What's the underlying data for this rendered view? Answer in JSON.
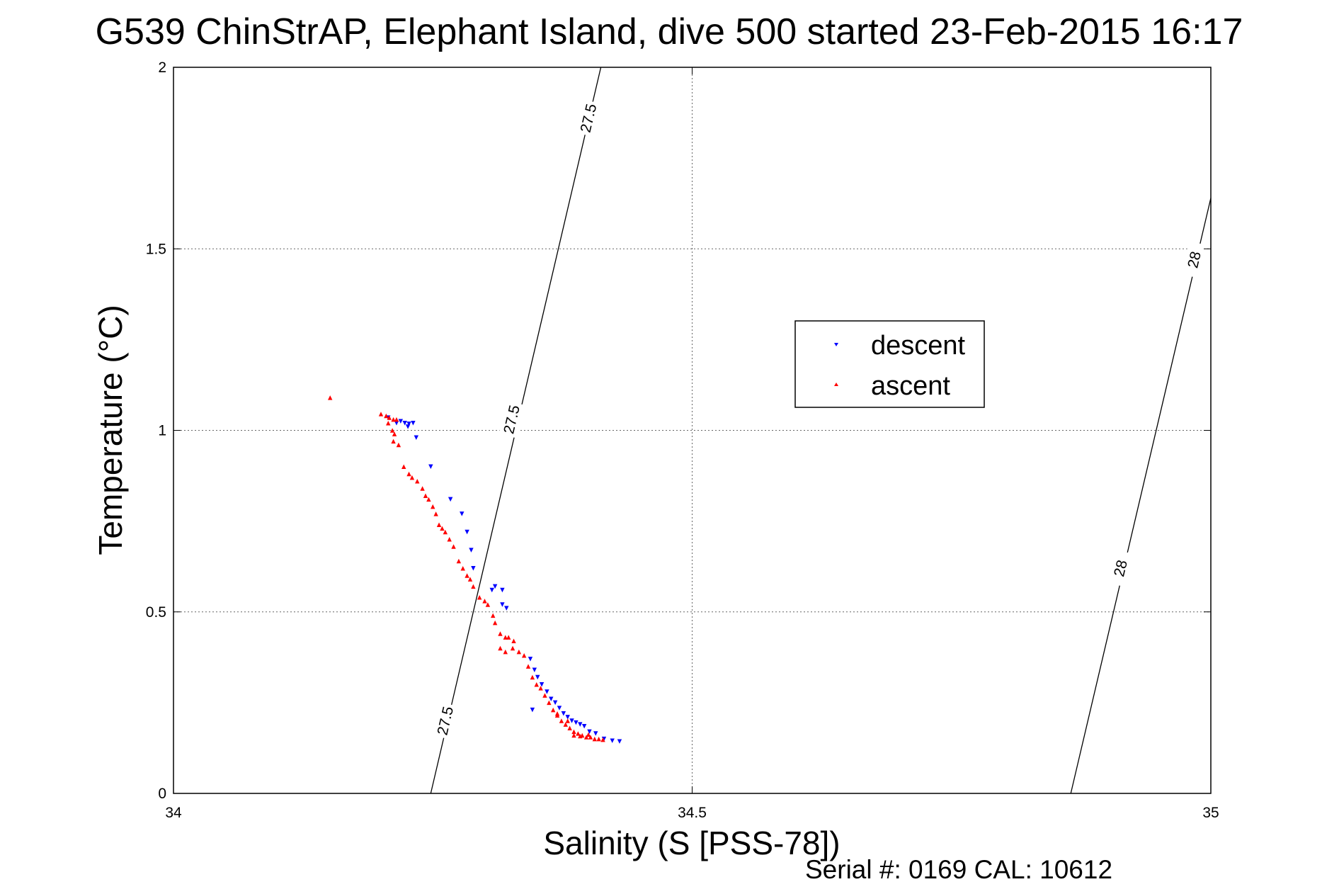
{
  "chart_data": {
    "type": "scatter",
    "title": "G539 ChinStrAP, Elephant Island, dive 500 started 23-Feb-2015 16:17",
    "xlabel": "Salinity (S [PSS-78])",
    "ylabel": "Temperature (°C)",
    "xlim": [
      34,
      35
    ],
    "ylim": [
      0,
      2
    ],
    "xticks": [
      34,
      34.5,
      35
    ],
    "xtick_labels": [
      "34",
      "34.5",
      "35"
    ],
    "yticks": [
      0,
      0.5,
      1,
      1.5,
      2
    ],
    "ytick_labels": [
      "0",
      "0.5",
      "1",
      "1.5",
      "2"
    ],
    "grid": true,
    "legend_position": "top-right of center",
    "footer": "Serial #: 0169 CAL: 10612",
    "contours": [
      {
        "value": "27.5",
        "line": [
          [
            34.248,
            0
          ],
          [
            34.412,
            2
          ]
        ],
        "label_positions": [
          [
            34.262,
            0.2
          ],
          [
            34.326,
            1.03
          ],
          [
            34.4,
            1.86
          ]
        ]
      },
      {
        "value": "28",
        "line": [
          [
            34.865,
            0
          ],
          [
            35,
            1.64
          ]
        ],
        "label_positions": [
          [
            34.913,
            0.62
          ],
          [
            34.984,
            1.47
          ]
        ]
      }
    ],
    "series": [
      {
        "name": "descent",
        "color": "#0000ff",
        "marker": "triangle-down",
        "points": [
          [
            34.207,
            1.035
          ],
          [
            34.215,
            1.02
          ],
          [
            34.219,
            1.025
          ],
          [
            34.223,
            1.02
          ],
          [
            34.227,
            1.018
          ],
          [
            34.231,
            1.02
          ],
          [
            34.226,
            1.01
          ],
          [
            34.234,
            0.98
          ],
          [
            34.248,
            0.9
          ],
          [
            34.267,
            0.81
          ],
          [
            34.278,
            0.77
          ],
          [
            34.283,
            0.72
          ],
          [
            34.287,
            0.67
          ],
          [
            34.289,
            0.62
          ],
          [
            34.31,
            0.57
          ],
          [
            34.307,
            0.56
          ],
          [
            34.317,
            0.56
          ],
          [
            34.317,
            0.52
          ],
          [
            34.321,
            0.51
          ],
          [
            34.344,
            0.37
          ],
          [
            34.348,
            0.34
          ],
          [
            34.351,
            0.32
          ],
          [
            34.355,
            0.3
          ],
          [
            34.346,
            0.23
          ],
          [
            34.36,
            0.28
          ],
          [
            34.364,
            0.26
          ],
          [
            34.368,
            0.25
          ],
          [
            34.372,
            0.235
          ],
          [
            34.376,
            0.22
          ],
          [
            34.38,
            0.21
          ],
          [
            34.384,
            0.2
          ],
          [
            34.388,
            0.195
          ],
          [
            34.392,
            0.19
          ],
          [
            34.396,
            0.185
          ],
          [
            34.401,
            0.17
          ],
          [
            34.407,
            0.165
          ],
          [
            34.415,
            0.15
          ],
          [
            34.423,
            0.145
          ],
          [
            34.43,
            0.143
          ]
        ]
      },
      {
        "name": "ascent",
        "color": "#ff0000",
        "marker": "triangle-up",
        "points": [
          [
            34.151,
            1.09
          ],
          [
            34.2,
            1.045
          ],
          [
            34.205,
            1.04
          ],
          [
            34.208,
            1.035
          ],
          [
            34.212,
            1.03
          ],
          [
            34.215,
            1.03
          ],
          [
            34.207,
            1.02
          ],
          [
            34.211,
            1.0
          ],
          [
            34.213,
            0.99
          ],
          [
            34.212,
            0.97
          ],
          [
            34.217,
            0.96
          ],
          [
            34.222,
            0.9
          ],
          [
            34.227,
            0.88
          ],
          [
            34.23,
            0.87
          ],
          [
            34.235,
            0.86
          ],
          [
            34.24,
            0.84
          ],
          [
            34.243,
            0.82
          ],
          [
            34.246,
            0.81
          ],
          [
            34.25,
            0.79
          ],
          [
            34.253,
            0.77
          ],
          [
            34.256,
            0.74
          ],
          [
            34.259,
            0.73
          ],
          [
            34.262,
            0.72
          ],
          [
            34.266,
            0.7
          ],
          [
            34.27,
            0.68
          ],
          [
            34.275,
            0.64
          ],
          [
            34.279,
            0.62
          ],
          [
            34.283,
            0.6
          ],
          [
            34.286,
            0.59
          ],
          [
            34.289,
            0.57
          ],
          [
            34.295,
            0.54
          ],
          [
            34.3,
            0.53
          ],
          [
            34.303,
            0.52
          ],
          [
            34.308,
            0.49
          ],
          [
            34.31,
            0.47
          ],
          [
            34.315,
            0.44
          ],
          [
            34.32,
            0.43
          ],
          [
            34.323,
            0.43
          ],
          [
            34.328,
            0.42
          ],
          [
            34.315,
            0.4
          ],
          [
            34.32,
            0.39
          ],
          [
            34.327,
            0.4
          ],
          [
            34.333,
            0.39
          ],
          [
            34.338,
            0.38
          ],
          [
            34.342,
            0.35
          ],
          [
            34.346,
            0.32
          ],
          [
            34.35,
            0.3
          ],
          [
            34.354,
            0.29
          ],
          [
            34.358,
            0.27
          ],
          [
            34.362,
            0.25
          ],
          [
            34.366,
            0.23
          ],
          [
            34.37,
            0.22
          ],
          [
            34.374,
            0.2
          ],
          [
            34.378,
            0.19
          ],
          [
            34.382,
            0.18
          ],
          [
            34.386,
            0.17
          ],
          [
            34.39,
            0.165
          ],
          [
            34.394,
            0.16
          ],
          [
            34.398,
            0.155
          ],
          [
            34.402,
            0.155
          ],
          [
            34.406,
            0.15
          ],
          [
            34.41,
            0.15
          ],
          [
            34.414,
            0.148
          ],
          [
            34.386,
            0.16
          ],
          [
            34.392,
            0.158
          ],
          [
            34.4,
            0.162
          ],
          [
            34.38,
            0.2
          ],
          [
            34.37,
            0.215
          ]
        ]
      }
    ]
  }
}
